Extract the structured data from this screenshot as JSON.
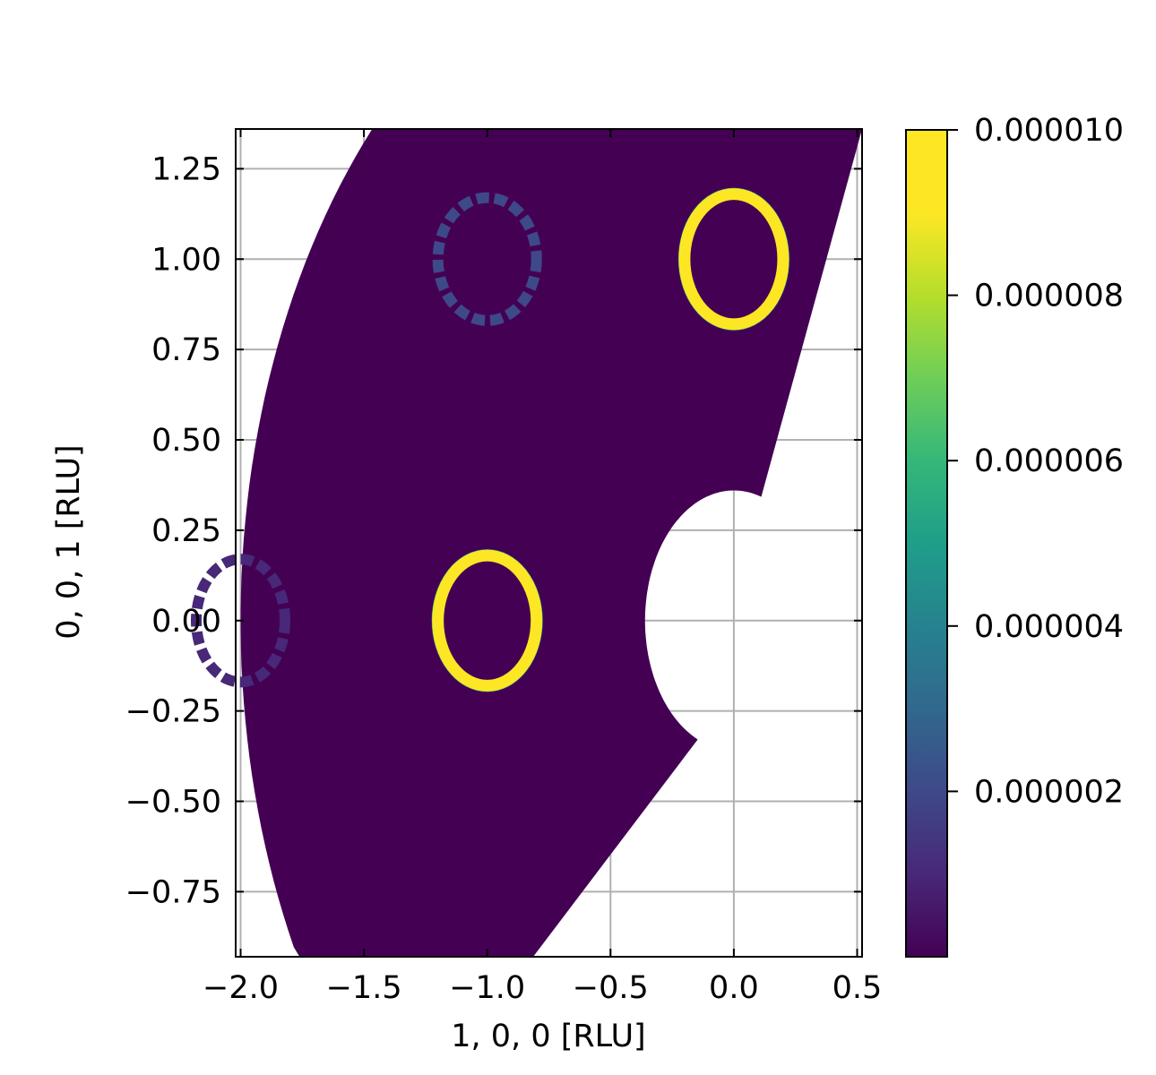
{
  "chart_data": {
    "type": "heatmap",
    "title": "",
    "xlabel": "1, 0, 0 [RLU]",
    "ylabel": "0, 0, 1 [RLU]",
    "xlim": [
      -2.02,
      0.52
    ],
    "ylim": [
      -0.93,
      1.36
    ],
    "x_ticks": [
      -2.0,
      -1.5,
      -1.0,
      -0.5,
      0.0,
      0.5
    ],
    "x_tick_labels": [
      "−2.0",
      "−1.5",
      "−1.0",
      "−0.5",
      "0.0",
      "0.5"
    ],
    "y_ticks": [
      -0.75,
      -0.5,
      -0.25,
      0.0,
      0.25,
      0.5,
      0.75,
      1.0,
      1.25
    ],
    "y_tick_labels": [
      "−0.75",
      "−0.50",
      "−0.25",
      "0.00",
      "0.25",
      "0.50",
      "0.75",
      "1.00",
      "1.25"
    ],
    "grid": true,
    "colormap": "viridis",
    "colorbar": {
      "min": 0.0,
      "max": 1e-05,
      "ticks": [
        2e-06,
        4e-06,
        6e-06,
        8e-06,
        1e-05
      ],
      "tick_labels": [
        "0.000002",
        "0.000004",
        "0.000006",
        "0.000008",
        "0.000010"
      ]
    },
    "coverage": {
      "shape": "annular sector",
      "center": [
        0.0,
        0.0
      ],
      "inner_radius": 0.36,
      "outer_radius": 2.0,
      "angle_start_deg": 72,
      "angle_end_deg": 246
    },
    "features": [
      {
        "kind": "strong ring",
        "center": [
          -1.0,
          0.0
        ],
        "rx": 0.2,
        "ry": 0.18,
        "intensity": 1e-05
      },
      {
        "kind": "strong ring",
        "center": [
          0.0,
          1.0
        ],
        "rx": 0.2,
        "ry": 0.18,
        "intensity": 1e-05
      },
      {
        "kind": "weak ring",
        "center": [
          -1.0,
          1.0
        ],
        "rx": 0.2,
        "ry": 0.17,
        "intensity": 1.8e-06
      },
      {
        "kind": "weak ring",
        "center": [
          -2.0,
          0.0
        ],
        "rx": 0.18,
        "ry": 0.17,
        "intensity": 1.6e-06
      }
    ]
  }
}
